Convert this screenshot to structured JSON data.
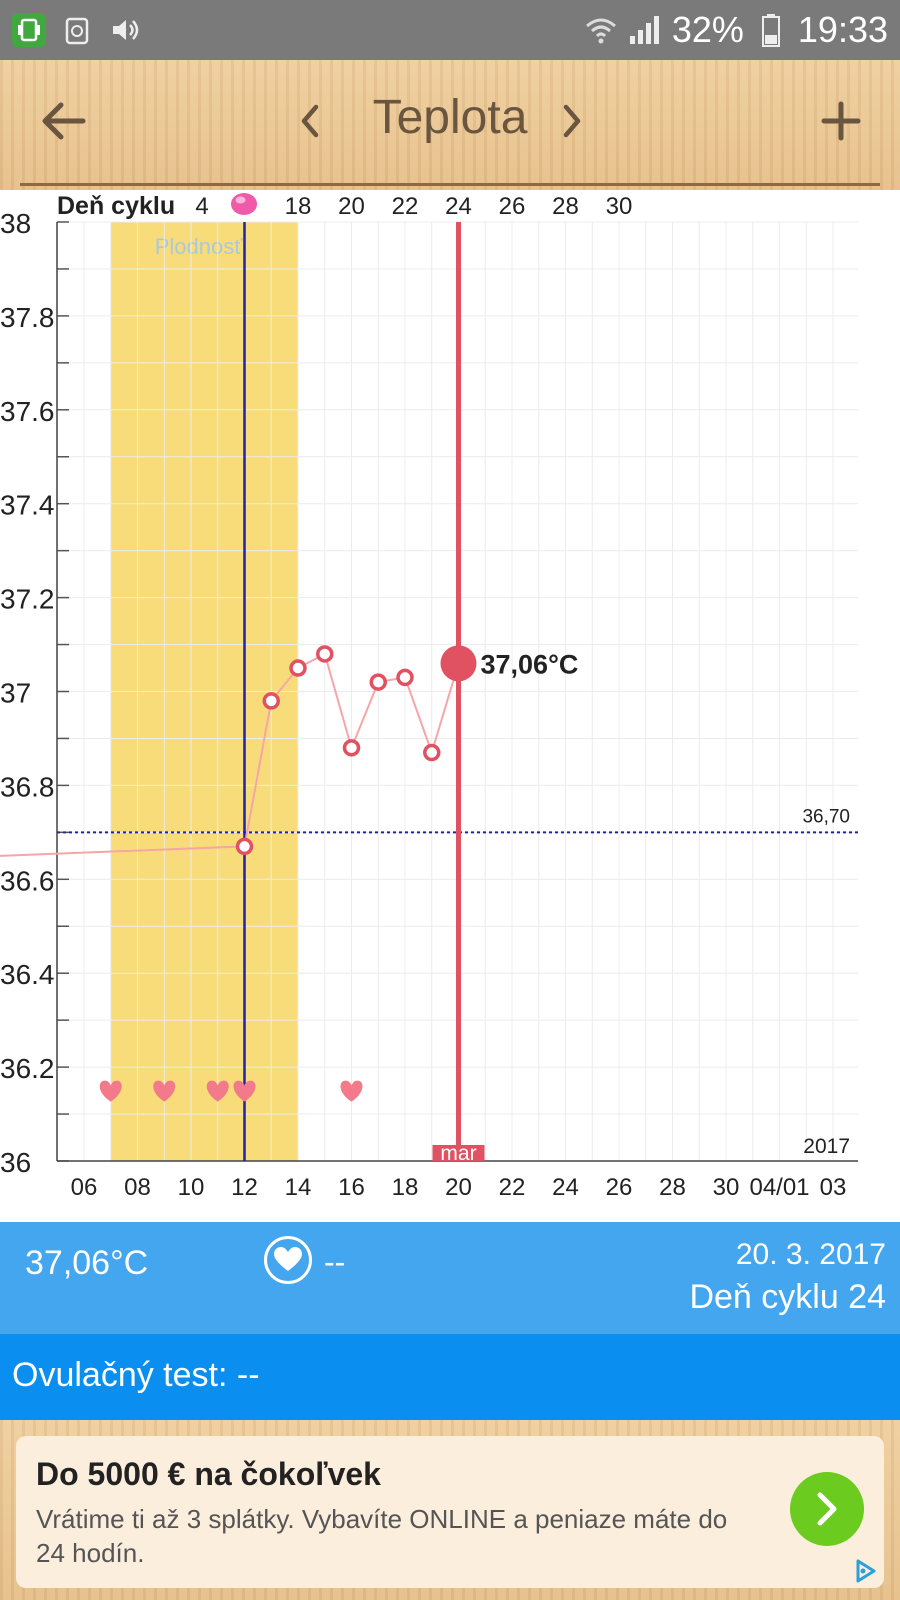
{
  "status_bar": {
    "battery": "32%",
    "time": "19:33"
  },
  "header": {
    "title": "Teplota"
  },
  "chart_data": {
    "type": "line",
    "top_axis_label": "Deň cyklu",
    "top_ticks": [
      "4",
      "18",
      "20",
      "22",
      "24",
      "26",
      "28",
      "30"
    ],
    "x_ticks": [
      "06",
      "08",
      "10",
      "12",
      "14",
      "16",
      "18",
      "20",
      "22",
      "24",
      "26",
      "28",
      "30",
      "04/01",
      "03"
    ],
    "y_ticks": [
      "38",
      "37.8",
      "37.6",
      "37.4",
      "37.2",
      "37",
      "36.8",
      "36.6",
      "36.4",
      "36.2",
      "36"
    ],
    "ylim": [
      36,
      38
    ],
    "fertile_label": "Plodnosť",
    "fertile_range": [
      7,
      14
    ],
    "ovulation_day": 12,
    "coverline_value": 36.7,
    "coverline_label": "36,70",
    "year_label": "2017",
    "selected_day": 20,
    "selected_label": "37,06°C",
    "month_tag": "mar",
    "series": [
      {
        "x": [
          12,
          13,
          14,
          15,
          16,
          17,
          18,
          19,
          20
        ],
        "values": [
          36.67,
          36.98,
          37.05,
          37.08,
          36.88,
          37.02,
          37.03,
          36.87,
          37.06
        ]
      }
    ],
    "series_prev_value": 36.65,
    "intercourse_days": [
      7,
      9,
      11,
      12,
      16
    ],
    "colors": {
      "fertile": "#f9dc7a",
      "line": "#f6a5a8",
      "point": "#e05262",
      "selected": "#e05262",
      "ovulation": "#1f23a8"
    }
  },
  "info": {
    "temperature": "37,06°C",
    "intercourse": "--",
    "date": "20. 3. 2017",
    "cycle_day": "Deň cyklu 24"
  },
  "ovulation_test": {
    "text": "Ovulačný test: --"
  },
  "ad": {
    "title": "Do 5000 € na čokoľvek",
    "body": "Vrátime ti až 3 splátky. Vybavíte ONLINE a peniaze máte do 24 hodín."
  }
}
